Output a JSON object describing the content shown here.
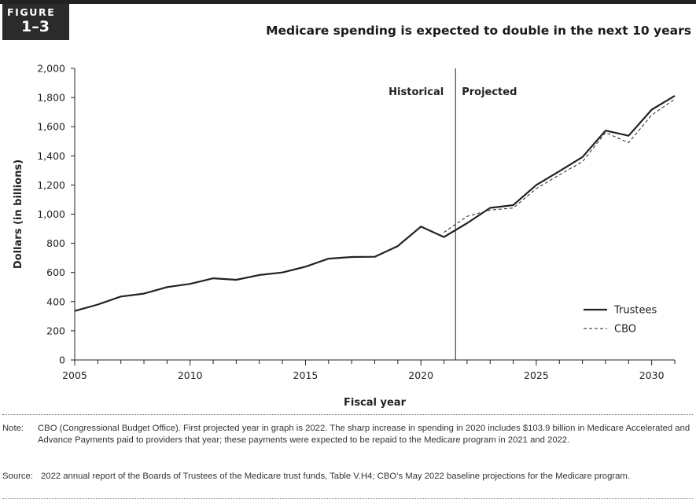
{
  "figure": {
    "label": "FIGURE",
    "number": "1–3"
  },
  "chart_data": {
    "type": "line",
    "title": "Medicare spending is expected to double in the next 10 years",
    "xlabel": "Fiscal year",
    "ylabel": "Dollars (in billions)",
    "xlim": [
      2005,
      2031
    ],
    "ylim": [
      0,
      2000
    ],
    "x_ticks": [
      2005,
      2010,
      2015,
      2020,
      2025,
      2030
    ],
    "y_ticks": [
      0,
      200,
      400,
      600,
      800,
      1000,
      1200,
      1400,
      1600,
      1800,
      2000
    ],
    "y_tick_labels": [
      "0",
      "200",
      "400",
      "600",
      "800",
      "1,000",
      "1,200",
      "1,400",
      "1,600",
      "1,800",
      "2,000"
    ],
    "divider_x": 2021.5,
    "region_labels": {
      "left": "Historical",
      "right": "Projected"
    },
    "grid": false,
    "legend_position": "bottom-right",
    "series": [
      {
        "name": "Trustees",
        "style": "solid",
        "x": [
          2005,
          2006,
          2007,
          2008,
          2009,
          2010,
          2011,
          2012,
          2013,
          2014,
          2015,
          2016,
          2017,
          2018,
          2019,
          2020,
          2021,
          2022,
          2023,
          2024,
          2025,
          2026,
          2027,
          2028,
          2029,
          2030,
          2031
        ],
        "values": [
          336,
          380,
          435,
          455,
          500,
          522,
          560,
          550,
          583,
          600,
          640,
          695,
          706,
          708,
          781,
          915,
          843,
          938,
          1043,
          1062,
          1200,
          1295,
          1392,
          1573,
          1538,
          1717,
          1812
        ]
      },
      {
        "name": "CBO",
        "style": "dashed",
        "x": [
          2021,
          2022,
          2023,
          2024,
          2025,
          2026,
          2027,
          2028,
          2029,
          2030,
          2031
        ],
        "values": [
          875,
          985,
          1028,
          1042,
          1175,
          1270,
          1360,
          1560,
          1490,
          1680,
          1790
        ]
      }
    ]
  },
  "note": {
    "label": "Note:",
    "text": "CBO (Congressional Budget Office). First projected year in graph is 2022. The sharp increase in spending in 2020 includes $103.9 billion in Medicare Accelerated and Advance Payments paid to providers that year; these payments were expected to be repaid to the Medicare program in 2021 and 2022."
  },
  "source": {
    "label": "Source:",
    "text": "2022 annual report of the Boards of Trustees of the Medicare trust funds, Table V.H4; CBO’s May 2022 baseline projections for the Medicare program."
  },
  "colors": {
    "line": "#222222",
    "axis": "#222222",
    "badge_bg": "#2b2b2b"
  }
}
